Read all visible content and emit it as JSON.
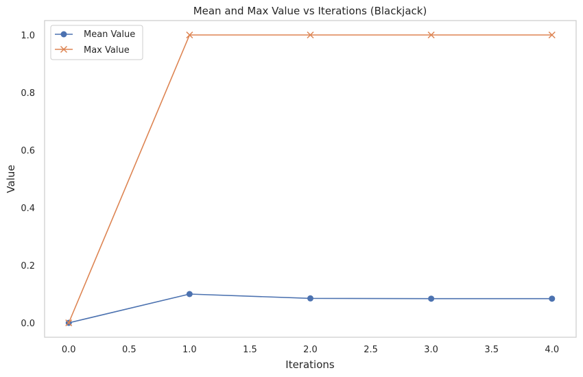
{
  "chart_data": {
    "type": "line",
    "title": "Mean and Max Value vs Iterations (Blackjack)",
    "xlabel": "Iterations",
    "ylabel": "Value",
    "xlim": [
      -0.2,
      4.2
    ],
    "ylim": [
      -0.05,
      1.05
    ],
    "xticks": [
      0.0,
      0.5,
      1.0,
      1.5,
      2.0,
      2.5,
      3.0,
      3.5,
      4.0
    ],
    "xtick_labels": [
      "0.0",
      "0.5",
      "1.0",
      "1.5",
      "2.0",
      "2.5",
      "3.0",
      "3.5",
      "4.0"
    ],
    "yticks": [
      0.0,
      0.2,
      0.4,
      0.6,
      0.8,
      1.0
    ],
    "ytick_labels": [
      "0.0",
      "0.2",
      "0.4",
      "0.6",
      "0.8",
      "1.0"
    ],
    "grid": false,
    "legend_position": "top-left",
    "x": [
      0,
      1,
      2,
      3,
      4
    ],
    "series": [
      {
        "name": "Mean Value",
        "values": [
          0.0,
          0.1,
          0.085,
          0.084,
          0.084
        ],
        "color": "#4c72b0",
        "marker": "circle"
      },
      {
        "name": "Max Value",
        "values": [
          0.0,
          1.0,
          1.0,
          1.0,
          1.0
        ],
        "color": "#dd8452",
        "marker": "x"
      }
    ]
  }
}
